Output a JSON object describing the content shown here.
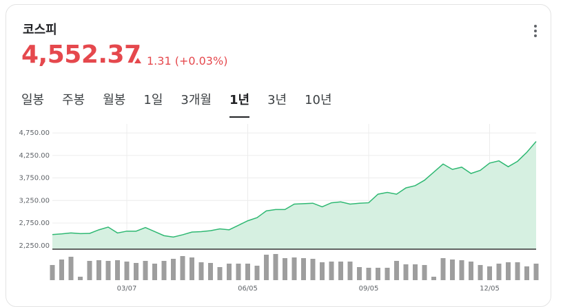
{
  "header": {
    "title": "코스피",
    "price": "4,552.37",
    "change": "1.31 (+0.03%)"
  },
  "tabs": [
    {
      "label": "일봉"
    },
    {
      "label": "주봉"
    },
    {
      "label": "월봉"
    },
    {
      "label": "1일"
    },
    {
      "label": "3개월"
    },
    {
      "label": "1년",
      "active": true
    },
    {
      "label": "3년"
    },
    {
      "label": "10년"
    }
  ],
  "chart_data": [
    {
      "type": "area",
      "color": "#2eb872",
      "fill": "#d6f0e1",
      "grid": true,
      "values": [
        2495,
        2510,
        2530,
        2515,
        2520,
        2600,
        2660,
        2530,
        2570,
        2570,
        2650,
        2560,
        2470,
        2440,
        2490,
        2550,
        2560,
        2580,
        2620,
        2600,
        2700,
        2800,
        2870,
        3020,
        3050,
        3050,
        3170,
        3180,
        3190,
        3110,
        3200,
        3220,
        3170,
        3190,
        3200,
        3390,
        3430,
        3390,
        3530,
        3580,
        3700,
        3880,
        4060,
        3940,
        3990,
        3850,
        3920,
        4080,
        4130,
        4000,
        4120,
        4320,
        4560
      ],
      "ylim": [
        2170,
        4950
      ],
      "yticks": [
        {
          "value": 2250,
          "label": "2,250.00"
        },
        {
          "value": 2750,
          "label": "2,750.00"
        },
        {
          "value": 3250,
          "label": "3,250.00"
        },
        {
          "value": 3750,
          "label": "3,750.00"
        },
        {
          "value": 4250,
          "label": "4,250.00"
        },
        {
          "value": 4750,
          "label": "4,750.00"
        }
      ]
    },
    {
      "type": "bar",
      "color": "#9e9e9e",
      "categories": [
        null,
        null,
        null,
        null,
        null,
        null,
        null,
        null,
        "03/07",
        null,
        null,
        null,
        null,
        null,
        null,
        null,
        null,
        null,
        null,
        null,
        null,
        "06/05",
        null,
        null,
        null,
        null,
        null,
        null,
        null,
        null,
        null,
        null,
        null,
        null,
        "09/05",
        null,
        null,
        null,
        null,
        null,
        null,
        null,
        null,
        null,
        null,
        null,
        null,
        "12/05",
        null,
        null,
        null,
        null,
        null
      ],
      "values": [
        22,
        30,
        34,
        5,
        28,
        29,
        28,
        29,
        27,
        25,
        28,
        24,
        28,
        31,
        35,
        33,
        26,
        25,
        19,
        24,
        24,
        24,
        21,
        37,
        38,
        32,
        33,
        32,
        31,
        26,
        27,
        27,
        27,
        19,
        18,
        18,
        18,
        28,
        23,
        23,
        22,
        5,
        32,
        30,
        29,
        27,
        22,
        20,
        24,
        26,
        26,
        20,
        24
      ]
    }
  ]
}
